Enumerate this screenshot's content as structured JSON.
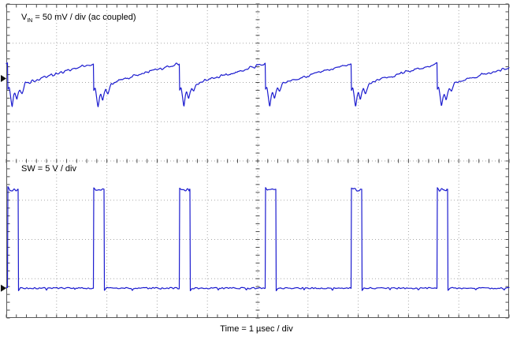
{
  "labels": {
    "vin_prefix": "V",
    "vin_sub": "IN",
    "vin_rest": " = 50 mV / div (ac coupled)",
    "sw": "SW = 5 V / div",
    "time": "Time = 1 µsec / div"
  },
  "colors": {
    "background": "#ffffff",
    "trace": "#1c1ccf",
    "grid": "#a8a8a8",
    "border": "#5a5a5a",
    "tick": "#4a4a4a",
    "marker": "#111111",
    "text": "#000000"
  },
  "chart_data": {
    "type": "line",
    "title": "Oscilloscope capture: input voltage ripple (top) and switch node (bottom)",
    "xlabel": "Time = 1 µsec / div",
    "x_divisions": 10,
    "y_divisions": 8,
    "timebase_per_div": "1 µsec",
    "legend_position": "in-plot-labels",
    "grid": "dotted",
    "series": [
      {
        "name": "VIN",
        "label": "VIN = 50 mV / div (ac coupled)",
        "scale_per_div": "50 mV",
        "coupling": "ac coupled",
        "shape": "sawtooth-ripple-with-switching-spikes",
        "period_div": 1.708,
        "phase_div": 0.03,
        "baseline_div": 1.9,
        "ramp_low_div": -0.3,
        "ramp_high_div": 0.38,
        "ramp_exponent": 0.85,
        "spikes": [
          {
            "pos": 0.05,
            "width": 0.032,
            "depth_div": 0.48
          },
          {
            "pos": 0.105,
            "width": 0.036,
            "depth_div": 0.36
          },
          {
            "pos": 0.165,
            "width": 0.04,
            "depth_div": 0.2
          }
        ],
        "ring_amp_div": 0.05,
        "noise_div": 0.035
      },
      {
        "name": "SW",
        "label": "SW = 5 V / div",
        "scale_per_div": "5 V",
        "shape": "pulse",
        "period_div": 1.708,
        "phase_div": 0.03,
        "low_div": 7.24,
        "high_div": 4.74,
        "on_width_div": 0.21,
        "pulses_visible": 6,
        "noise_div": 0.022
      }
    ]
  }
}
